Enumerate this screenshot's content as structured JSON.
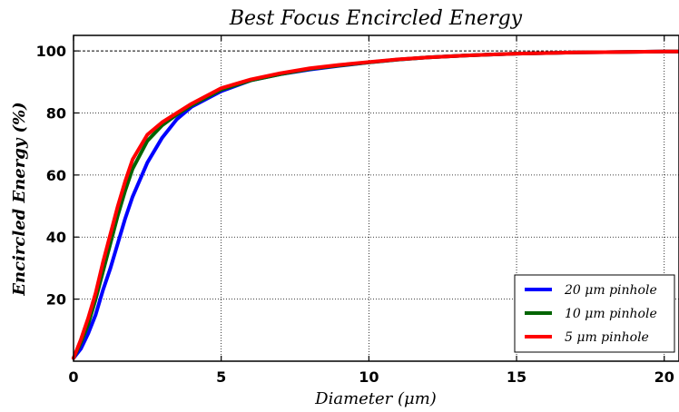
{
  "chart_data": {
    "type": "line",
    "title": "Best Focus Encircled Energy",
    "xlabel": "Diameter (μm)",
    "ylabel": "Encircled Energy (%)",
    "xlim": [
      0,
      20.5
    ],
    "ylim": [
      0,
      105
    ],
    "xticks": [
      "0",
      "5",
      "10",
      "15",
      "20"
    ],
    "yticks": [
      "20",
      "40",
      "60",
      "80",
      "100"
    ],
    "grid": true,
    "legend_position": "bottom-right",
    "reference_line_y": 100,
    "series": [
      {
        "name": "20 μm pinhole",
        "color": "#0000ff",
        "x": [
          0,
          0.25,
          0.5,
          0.75,
          1.0,
          1.25,
          1.5,
          1.75,
          2.0,
          2.5,
          3.0,
          3.5,
          4.0,
          5.0,
          6.0,
          7.0,
          8.0,
          9.0,
          10.0,
          11.0,
          12.0,
          13.0,
          14.0,
          15.0,
          16.0,
          17.0,
          18.0,
          19.0,
          20.0,
          20.5
        ],
        "y": [
          1,
          4,
          9,
          15,
          23,
          30,
          38,
          46,
          53,
          64,
          72,
          78,
          82,
          87,
          90.5,
          92.5,
          94,
          95.2,
          96.3,
          97.2,
          97.9,
          98.4,
          98.8,
          99.1,
          99.3,
          99.5,
          99.6,
          99.7,
          99.8,
          99.8
        ]
      },
      {
        "name": "10 μm pinhole",
        "color": "#006400",
        "x": [
          0,
          0.25,
          0.5,
          0.75,
          1.0,
          1.25,
          1.5,
          1.75,
          2.0,
          2.5,
          3.0,
          3.5,
          4.0,
          5.0,
          6.0,
          7.0,
          8.0,
          9.0,
          10.0,
          11.0,
          12.0,
          13.0,
          14.0,
          15.0,
          16.0,
          17.0,
          18.0,
          19.0,
          20.0,
          20.5
        ],
        "y": [
          1,
          6,
          12,
          20,
          29,
          38,
          47,
          55,
          62,
          71,
          76,
          79.5,
          82.5,
          87.5,
          90.5,
          92.5,
          94.2,
          95.3,
          96.3,
          97.2,
          97.9,
          98.4,
          98.8,
          99.1,
          99.3,
          99.5,
          99.6,
          99.7,
          99.8,
          99.8
        ]
      },
      {
        "name": "5 μm pinhole",
        "color": "#ff0000",
        "x": [
          0,
          0.25,
          0.5,
          0.75,
          1.0,
          1.25,
          1.5,
          1.75,
          2.0,
          2.5,
          3.0,
          3.5,
          4.0,
          5.0,
          6.0,
          7.0,
          8.0,
          9.0,
          10.0,
          11.0,
          12.0,
          13.0,
          14.0,
          15.0,
          16.0,
          17.0,
          18.0,
          19.0,
          20.0,
          20.5
        ],
        "y": [
          1,
          7,
          14,
          22,
          32,
          41,
          50,
          58,
          65,
          73,
          77,
          80,
          83,
          88,
          90.8,
          92.8,
          94.4,
          95.5,
          96.4,
          97.3,
          97.9,
          98.4,
          98.8,
          99.1,
          99.3,
          99.5,
          99.6,
          99.7,
          99.8,
          99.8
        ]
      }
    ]
  }
}
